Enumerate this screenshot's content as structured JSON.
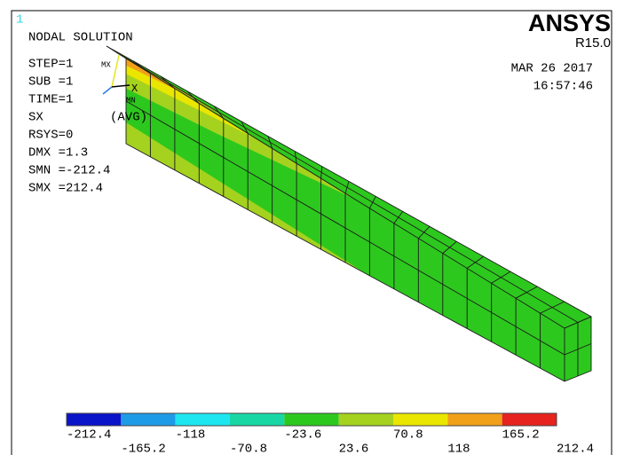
{
  "window_number": "1",
  "title": "NODAL SOLUTION",
  "info": [
    "STEP=1",
    "SUB =1",
    "TIME=1",
    "SX",
    "RSYS=0",
    "DMX =1.3",
    "SMN =-212.4",
    "SMX =212.4"
  ],
  "avg": "(AVG)",
  "triad": {
    "max": "MX",
    "min": "MN",
    "axis": "X"
  },
  "brand": "ANSYS",
  "version": "R15.0",
  "date": "MAR 26 2017",
  "time": "16:57:46",
  "legend": {
    "colors": [
      "#0a14c8",
      "#1e9be6",
      "#1ee6f0",
      "#19d7a5",
      "#2dc81e",
      "#a5d21e",
      "#ebe600",
      "#f0a019",
      "#e6231e"
    ],
    "labels": [
      "-212.4",
      "-165.2",
      "-118",
      "-70.8",
      "-23.6",
      "23.6",
      "70.8",
      "118",
      "165.2",
      "212.4"
    ]
  }
}
